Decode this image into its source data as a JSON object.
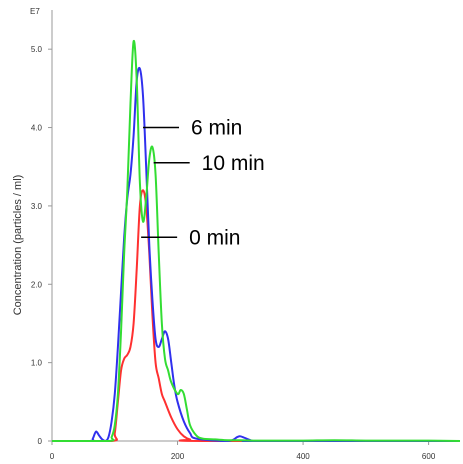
{
  "chart_data": {
    "type": "line",
    "title": "",
    "xlabel": "",
    "ylabel": "Concentration (particles / ml)",
    "y_exponent_label": "E7",
    "xlim": [
      0,
      650
    ],
    "ylim": [
      0,
      5.5
    ],
    "x_ticks": [
      0,
      200,
      400,
      600
    ],
    "x_tick_labels": [
      "0",
      "200",
      "400",
      "600"
    ],
    "y_ticks": [
      0,
      1,
      2,
      3,
      4,
      5
    ],
    "y_tick_labels": [
      "0",
      "1.0",
      "2.0",
      "3.0",
      "4.0",
      "5.0"
    ],
    "grid": false,
    "legend": "none",
    "series": [
      {
        "color": "#ff3030",
        "x": [
          0,
          95,
          100,
          105,
          110,
          115,
          120,
          125,
          130,
          135,
          140,
          145,
          150,
          155,
          160,
          165,
          170,
          175,
          180,
          190,
          200,
          210,
          220,
          240,
          650
        ],
        "y": [
          0,
          0,
          0.1,
          0.5,
          0.9,
          1.05,
          1.1,
          1.2,
          1.5,
          2.2,
          3.0,
          3.2,
          3.0,
          2.4,
          1.6,
          1.0,
          0.8,
          0.6,
          0.5,
          0.3,
          0.15,
          0.06,
          0.02,
          0,
          0
        ]
      },
      {
        "color": "#3030ee",
        "x": [
          0,
          60,
          65,
          70,
          75,
          80,
          85,
          90,
          95,
          100,
          105,
          110,
          115,
          120,
          125,
          130,
          135,
          140,
          145,
          150,
          155,
          160,
          165,
          170,
          175,
          180,
          185,
          190,
          195,
          200,
          210,
          220,
          230,
          280,
          295,
          300,
          310,
          320,
          330,
          650
        ],
        "y": [
          0,
          0,
          0.03,
          0.12,
          0.07,
          0.02,
          0,
          0.05,
          0.25,
          0.6,
          1.2,
          1.9,
          2.6,
          3.1,
          3.4,
          3.9,
          4.6,
          4.75,
          4.4,
          3.5,
          2.5,
          1.8,
          1.3,
          1.2,
          1.3,
          1.4,
          1.3,
          1.0,
          0.7,
          0.5,
          0.25,
          0.1,
          0.03,
          0,
          0.05,
          0.06,
          0.03,
          0,
          0,
          0
        ]
      },
      {
        "color": "#33dd33",
        "x": [
          0,
          90,
          95,
          100,
          105,
          110,
          115,
          120,
          125,
          130,
          135,
          140,
          145,
          150,
          155,
          160,
          165,
          170,
          175,
          180,
          185,
          190,
          200,
          205,
          210,
          215,
          220,
          230,
          240,
          260,
          280,
          300,
          320,
          350,
          400,
          450,
          500,
          550,
          600,
          650
        ],
        "y": [
          0,
          0,
          0.05,
          0.2,
          0.6,
          1.4,
          2.4,
          3.2,
          4.3,
          5.1,
          4.6,
          3.3,
          2.8,
          3.1,
          3.6,
          3.75,
          3.4,
          2.4,
          1.5,
          1.05,
          0.9,
          0.75,
          0.6,
          0.65,
          0.6,
          0.4,
          0.2,
          0.07,
          0.03,
          0.02,
          0.01,
          0.01,
          0.005,
          0.005,
          0.005,
          0.01,
          0.005,
          0.005,
          0.005,
          0
        ]
      }
    ],
    "annotations": [
      {
        "text": "6 min",
        "line_x": 145,
        "line_y": 4.0
      },
      {
        "text": "10 min",
        "line_x": 162,
        "line_y": 3.55
      },
      {
        "text": "0 min",
        "line_x": 142,
        "line_y": 2.6
      }
    ]
  }
}
